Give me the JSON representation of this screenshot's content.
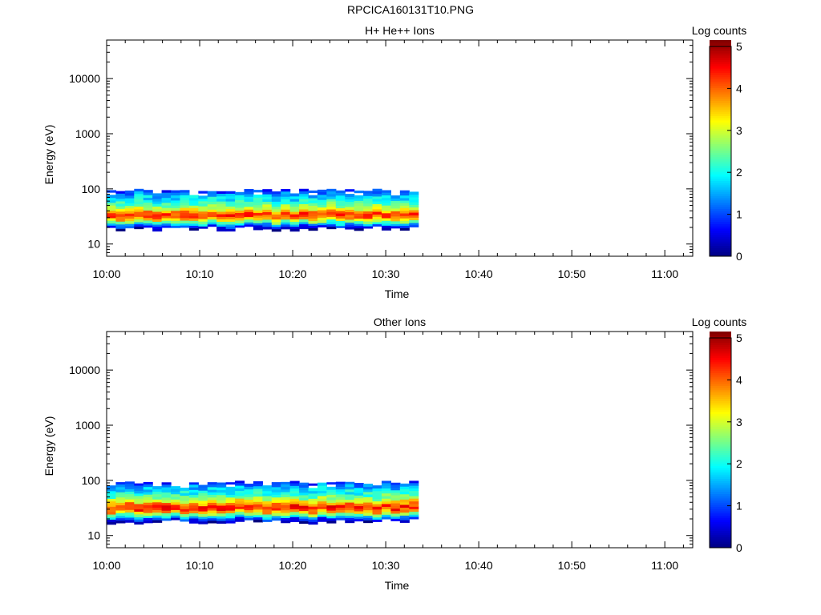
{
  "page_title": "RPCICA160131T10.PNG",
  "colorbar_label": "Log counts",
  "colorscale": [
    "#00007f",
    "#0000ff",
    "#007fff",
    "#00ffff",
    "#7fff7f",
    "#ffff00",
    "#ff7f00",
    "#ff0000",
    "#7f0000"
  ],
  "chart_data": [
    {
      "type": "heatmap",
      "title": "H+ He++ Ions",
      "xlabel": "Time",
      "ylabel": "Energy (eV)",
      "y_scale": "log",
      "ylim": [
        6,
        50000
      ],
      "xlim": [
        "10:00",
        "11:03"
      ],
      "x_ticks": [
        "10:00",
        "10:10",
        "10:20",
        "10:30",
        "10:40",
        "10:50",
        "11:00"
      ],
      "y_ticks": [
        "10",
        "100",
        "1000",
        "10000"
      ],
      "colorbar": {
        "label": "Log counts",
        "range": [
          0,
          5
        ],
        "ticks": [
          "0",
          "1",
          "2",
          "3",
          "4",
          "5"
        ]
      },
      "data_time_range": [
        "10:00",
        "10:33.5"
      ],
      "energy_bins_ev": [
        18,
        20,
        22,
        24,
        27,
        30,
        33,
        37,
        41,
        46,
        51,
        57,
        63,
        70,
        78,
        87,
        95
      ],
      "time_bins": 34,
      "log_counts_profile": [
        0.2,
        0.8,
        1.6,
        2.4,
        3.4,
        4.0,
        4.1,
        3.6,
        3.0,
        2.6,
        2.3,
        2.0,
        1.8,
        1.6,
        1.3,
        0.9,
        0.4
      ]
    },
    {
      "type": "heatmap",
      "title": "Other Ions",
      "xlabel": "Time",
      "ylabel": "Energy (eV)",
      "y_scale": "log",
      "ylim": [
        6,
        50000
      ],
      "xlim": [
        "10:00",
        "11:03"
      ],
      "x_ticks": [
        "10:00",
        "10:10",
        "10:20",
        "10:30",
        "10:40",
        "10:50",
        "11:00"
      ],
      "y_ticks": [
        "10",
        "100",
        "1000",
        "10000"
      ],
      "colorbar": {
        "label": "Log counts",
        "range": [
          0,
          5
        ],
        "ticks": [
          "0",
          "1",
          "2",
          "3",
          "4",
          "5"
        ]
      },
      "data_time_range": [
        "10:00",
        "10:33.5"
      ],
      "energy_bins_ev": [
        17,
        19,
        21,
        23,
        26,
        29,
        32,
        36,
        40,
        45,
        50,
        56,
        62,
        69,
        77,
        86,
        93
      ],
      "time_bins": 34,
      "log_counts_profile": [
        0.2,
        0.8,
        1.6,
        2.5,
        3.5,
        4.1,
        4.2,
        3.7,
        3.1,
        2.6,
        2.3,
        2.0,
        1.8,
        1.6,
        1.3,
        0.9,
        0.4
      ]
    }
  ]
}
